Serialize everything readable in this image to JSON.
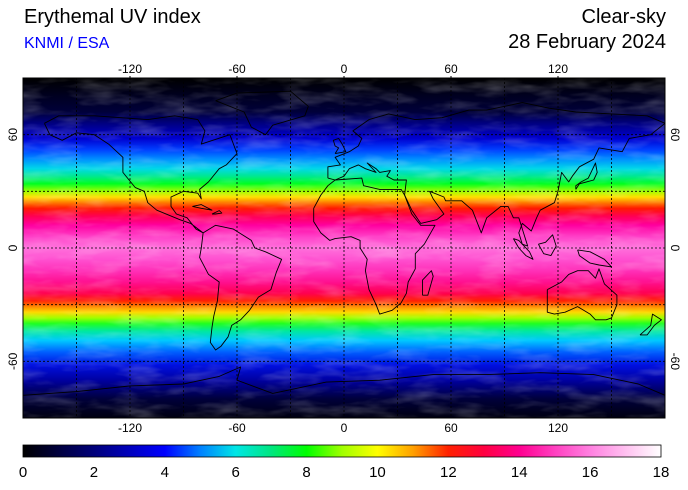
{
  "header": {
    "title": "Erythemal UV index",
    "source": "KNMI / ESA",
    "condition": "Clear-sky",
    "date": "28 February 2024"
  },
  "map": {
    "lon_ticks": [
      "-120",
      "-60",
      "0",
      "60",
      "120"
    ],
    "lat_ticks": [
      "60",
      "0",
      "-60"
    ],
    "lon_ticks_values": [
      -120,
      -60,
      0,
      60,
      120
    ],
    "lat_ticks_values": [
      60,
      0,
      -60
    ]
  },
  "colorbar": {
    "ticks": [
      "0",
      "2",
      "4",
      "6",
      "8",
      "10",
      "12",
      "14",
      "16",
      "18"
    ],
    "range": [
      0,
      18
    ],
    "stops": [
      {
        "v": 0,
        "c": "#000000"
      },
      {
        "v": 2,
        "c": "#00007a"
      },
      {
        "v": 4,
        "c": "#0000ff"
      },
      {
        "v": 5,
        "c": "#0080ff"
      },
      {
        "v": 6,
        "c": "#00e6e6"
      },
      {
        "v": 7,
        "c": "#00e680"
      },
      {
        "v": 8,
        "c": "#00ff00"
      },
      {
        "v": 9,
        "c": "#a0ff00"
      },
      {
        "v": 10,
        "c": "#ffff00"
      },
      {
        "v": 11,
        "c": "#ffa000"
      },
      {
        "v": 12,
        "c": "#ff2000"
      },
      {
        "v": 13,
        "c": "#ff0040"
      },
      {
        "v": 14,
        "c": "#ff0090"
      },
      {
        "v": 15,
        "c": "#ff40c0"
      },
      {
        "v": 16,
        "c": "#ff80e0"
      },
      {
        "v": 17,
        "c": "#ffc0f0"
      },
      {
        "v": 18,
        "c": "#ffffff"
      }
    ]
  }
}
